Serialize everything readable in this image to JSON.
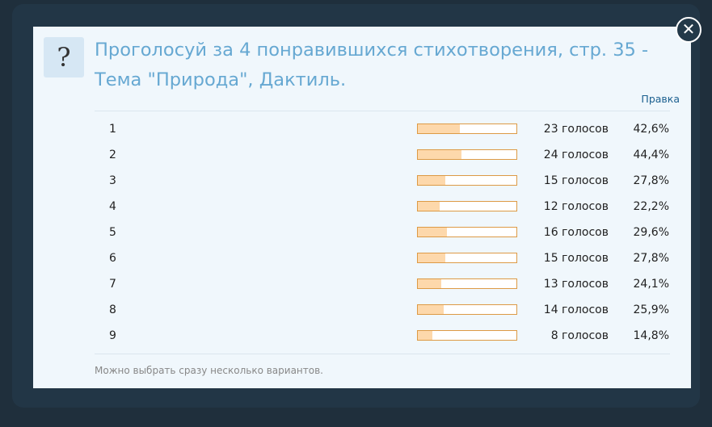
{
  "poll": {
    "title": "Проголосуй за 4 понравившихся стихотворения, стр. 35 - Тема \"Природа\", Дактиль.",
    "edit_link": "Правка",
    "options": [
      {
        "label": "1",
        "votes_label": "23 голосов",
        "percent": 42.6,
        "percent_label": "42,6%"
      },
      {
        "label": "2",
        "votes_label": "24 голосов",
        "percent": 44.4,
        "percent_label": "44,4%"
      },
      {
        "label": "3",
        "votes_label": "15 голосов",
        "percent": 27.8,
        "percent_label": "27,8%"
      },
      {
        "label": "4",
        "votes_label": "12 голосов",
        "percent": 22.2,
        "percent_label": "22,2%"
      },
      {
        "label": "5",
        "votes_label": "16 голосов",
        "percent": 29.6,
        "percent_label": "29,6%"
      },
      {
        "label": "6",
        "votes_label": "15 голосов",
        "percent": 27.8,
        "percent_label": "27,8%"
      },
      {
        "label": "7",
        "votes_label": "13 голосов",
        "percent": 24.1,
        "percent_label": "24,1%"
      },
      {
        "label": "8",
        "votes_label": "14 голосов",
        "percent": 25.9,
        "percent_label": "25,9%"
      },
      {
        "label": "9",
        "votes_label": "8 голосов",
        "percent": 14.8,
        "percent_label": "14,8%"
      }
    ],
    "bar_max": 100,
    "footer_note": "Можно выбрать сразу несколько вариантов."
  }
}
